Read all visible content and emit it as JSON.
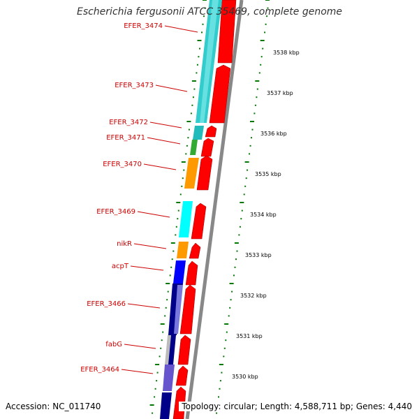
{
  "title": "Escherichia fergusonii ATCC 35469, complete genome",
  "footer": {
    "accession": "Accession: NC_011740",
    "topology": "Topology: circular; Length: 4,588,711 bp; Genes: 4,440"
  },
  "colors": {
    "label": "#cc0000",
    "gene_arrow": "#ff0000",
    "scale_tick": "#007700",
    "backbone": "#888888"
  },
  "gene_labels": [
    {
      "name": "EFER_3474"
    },
    {
      "name": "EFER_3473"
    },
    {
      "name": "EFER_3472"
    },
    {
      "name": "EFER_3471"
    },
    {
      "name": "EFER_3470"
    },
    {
      "name": "EFER_3469"
    },
    {
      "name": "nikR"
    },
    {
      "name": "acpT"
    },
    {
      "name": "EFER_3466"
    },
    {
      "name": "fabG"
    },
    {
      "name": "EFER_3464"
    }
  ],
  "scale_labels": [
    "3538 kbp",
    "3537 kbp",
    "3536 kbp",
    "3535 kbp",
    "3534 kbp",
    "3533 kbp",
    "3532 kbp",
    "3531 kbp",
    "3530 kbp"
  ]
}
